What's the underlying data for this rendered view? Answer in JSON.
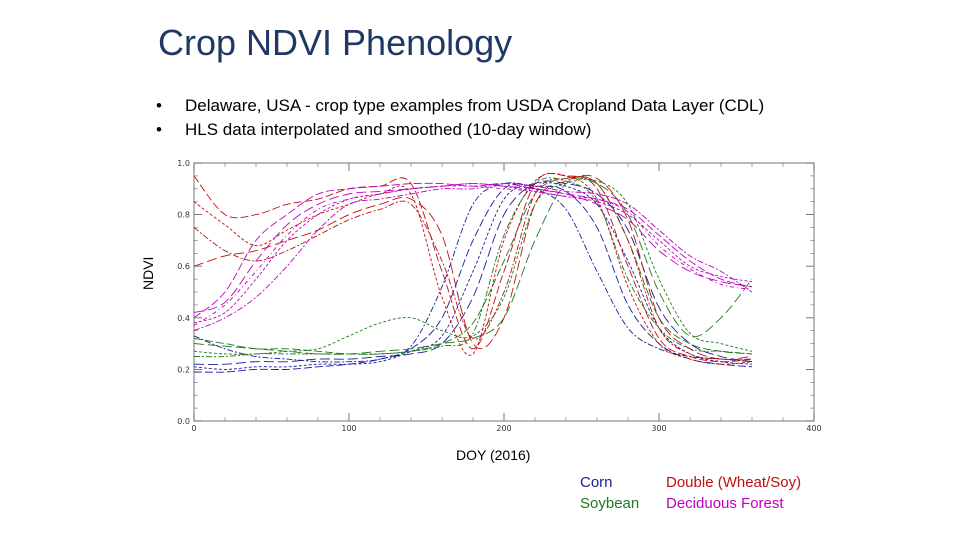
{
  "title": "Crop NDVI Phenology",
  "bullets": [
    "Delaware, USA  - crop type examples from USDA Cropland Data Layer (CDL)",
    "HLS data interpolated and smoothed (10-day window)"
  ],
  "bullet_glyph": "•",
  "colors": {
    "corn": "#1a1aa0",
    "soybean": "#1f7a1f",
    "double": "#c01010",
    "forest": "#c000c0"
  },
  "legend": {
    "corn": "Corn",
    "soybean": "Soybean",
    "double": "Double (Wheat/Soy)",
    "forest": "Deciduous Forest"
  },
  "chart_data": {
    "type": "line",
    "title": "Crop NDVI Phenology",
    "xlabel": "DOY (2016)",
    "ylabel": "NDVI",
    "xlim": [
      0,
      400
    ],
    "ylim": [
      0.0,
      1.0
    ],
    "xticks": [
      "0",
      "100",
      "200",
      "300",
      "400"
    ],
    "yticks": [
      "0.0",
      "0.2",
      "0.4",
      "0.6",
      "0.8",
      "1.0"
    ],
    "x": [
      0,
      20,
      40,
      60,
      80,
      100,
      120,
      140,
      160,
      180,
      200,
      220,
      240,
      260,
      280,
      300,
      320,
      340,
      360
    ],
    "series": [
      {
        "name": "Corn",
        "group": "corn",
        "values": [
          0.19,
          0.19,
          0.2,
          0.2,
          0.21,
          0.22,
          0.24,
          0.28,
          0.4,
          0.7,
          0.9,
          0.91,
          0.89,
          0.75,
          0.45,
          0.3,
          0.24,
          0.22,
          0.21
        ]
      },
      {
        "name": "Corn",
        "group": "corn",
        "values": [
          0.21,
          0.2,
          0.21,
          0.21,
          0.22,
          0.22,
          0.23,
          0.27,
          0.33,
          0.58,
          0.86,
          0.92,
          0.91,
          0.84,
          0.62,
          0.36,
          0.26,
          0.23,
          0.22
        ]
      },
      {
        "name": "Corn",
        "group": "corn",
        "values": [
          0.33,
          0.28,
          0.25,
          0.24,
          0.23,
          0.23,
          0.24,
          0.29,
          0.52,
          0.84,
          0.92,
          0.9,
          0.82,
          0.58,
          0.36,
          0.28,
          0.25,
          0.24,
          0.23
        ]
      },
      {
        "name": "Corn",
        "group": "corn",
        "values": [
          0.22,
          0.22,
          0.23,
          0.23,
          0.24,
          0.24,
          0.25,
          0.26,
          0.3,
          0.48,
          0.8,
          0.92,
          0.92,
          0.88,
          0.74,
          0.44,
          0.3,
          0.25,
          0.23
        ]
      },
      {
        "name": "Soybean",
        "group": "soybean",
        "values": [
          0.32,
          0.3,
          0.28,
          0.28,
          0.27,
          0.26,
          0.26,
          0.27,
          0.3,
          0.38,
          0.62,
          0.88,
          0.94,
          0.92,
          0.7,
          0.4,
          0.3,
          0.27,
          0.26
        ]
      },
      {
        "name": "Soybean",
        "group": "soybean",
        "values": [
          0.27,
          0.26,
          0.26,
          0.27,
          0.28,
          0.33,
          0.38,
          0.4,
          0.35,
          0.33,
          0.48,
          0.84,
          0.92,
          0.93,
          0.84,
          0.55,
          0.34,
          0.3,
          0.27
        ]
      },
      {
        "name": "Soybean",
        "group": "soybean",
        "values": [
          0.25,
          0.25,
          0.26,
          0.26,
          0.26,
          0.26,
          0.26,
          0.27,
          0.29,
          0.34,
          0.72,
          0.92,
          0.93,
          0.85,
          0.55,
          0.36,
          0.28,
          0.27,
          0.26
        ]
      },
      {
        "name": "Soybean",
        "group": "soybean",
        "values": [
          0.3,
          0.29,
          0.28,
          0.27,
          0.26,
          0.26,
          0.27,
          0.28,
          0.3,
          0.32,
          0.4,
          0.7,
          0.92,
          0.92,
          0.8,
          0.5,
          0.33,
          0.4,
          0.55
        ]
      },
      {
        "name": "Double (Wheat/Soy)",
        "group": "double",
        "values": [
          0.95,
          0.8,
          0.8,
          0.84,
          0.86,
          0.9,
          0.91,
          0.92,
          0.58,
          0.28,
          0.58,
          0.92,
          0.95,
          0.9,
          0.6,
          0.32,
          0.25,
          0.23,
          0.24
        ]
      },
      {
        "name": "Double (Wheat/Soy)",
        "group": "double",
        "values": [
          0.85,
          0.76,
          0.68,
          0.74,
          0.8,
          0.84,
          0.88,
          0.88,
          0.48,
          0.26,
          0.7,
          0.93,
          0.95,
          0.86,
          0.52,
          0.3,
          0.24,
          0.22,
          0.23
        ]
      },
      {
        "name": "Double (Wheat/Soy)",
        "group": "double",
        "values": [
          0.75,
          0.66,
          0.62,
          0.66,
          0.72,
          0.78,
          0.82,
          0.84,
          0.62,
          0.32,
          0.5,
          0.88,
          0.94,
          0.92,
          0.7,
          0.36,
          0.26,
          0.24,
          0.24
        ]
      },
      {
        "name": "Double (Wheat/Soy)",
        "group": "double",
        "values": [
          0.6,
          0.64,
          0.66,
          0.7,
          0.74,
          0.8,
          0.84,
          0.86,
          0.72,
          0.3,
          0.4,
          0.84,
          0.93,
          0.94,
          0.78,
          0.4,
          0.28,
          0.24,
          0.25
        ]
      },
      {
        "name": "Deciduous Forest",
        "group": "forest",
        "values": [
          0.4,
          0.5,
          0.7,
          0.8,
          0.88,
          0.9,
          0.91,
          0.92,
          0.92,
          0.91,
          0.92,
          0.9,
          0.88,
          0.86,
          0.82,
          0.72,
          0.62,
          0.55,
          0.52
        ]
      },
      {
        "name": "Deciduous Forest",
        "group": "forest",
        "values": [
          0.38,
          0.42,
          0.55,
          0.7,
          0.8,
          0.86,
          0.88,
          0.9,
          0.91,
          0.92,
          0.91,
          0.89,
          0.87,
          0.85,
          0.8,
          0.7,
          0.6,
          0.56,
          0.54
        ]
      },
      {
        "name": "Deciduous Forest",
        "group": "forest",
        "values": [
          0.35,
          0.4,
          0.48,
          0.6,
          0.74,
          0.84,
          0.86,
          0.88,
          0.9,
          0.9,
          0.92,
          0.91,
          0.89,
          0.88,
          0.84,
          0.74,
          0.64,
          0.58,
          0.5
        ]
      },
      {
        "name": "Deciduous Forest",
        "group": "forest",
        "values": [
          0.42,
          0.46,
          0.62,
          0.76,
          0.84,
          0.88,
          0.89,
          0.9,
          0.91,
          0.92,
          0.91,
          0.9,
          0.88,
          0.84,
          0.78,
          0.66,
          0.58,
          0.54,
          0.52
        ]
      },
      {
        "name": "Deciduous Forest",
        "group": "forest",
        "values": [
          0.37,
          0.45,
          0.58,
          0.72,
          0.82,
          0.86,
          0.88,
          0.9,
          0.91,
          0.91,
          0.9,
          0.89,
          0.87,
          0.86,
          0.81,
          0.68,
          0.59,
          0.53,
          0.51
        ]
      }
    ]
  }
}
